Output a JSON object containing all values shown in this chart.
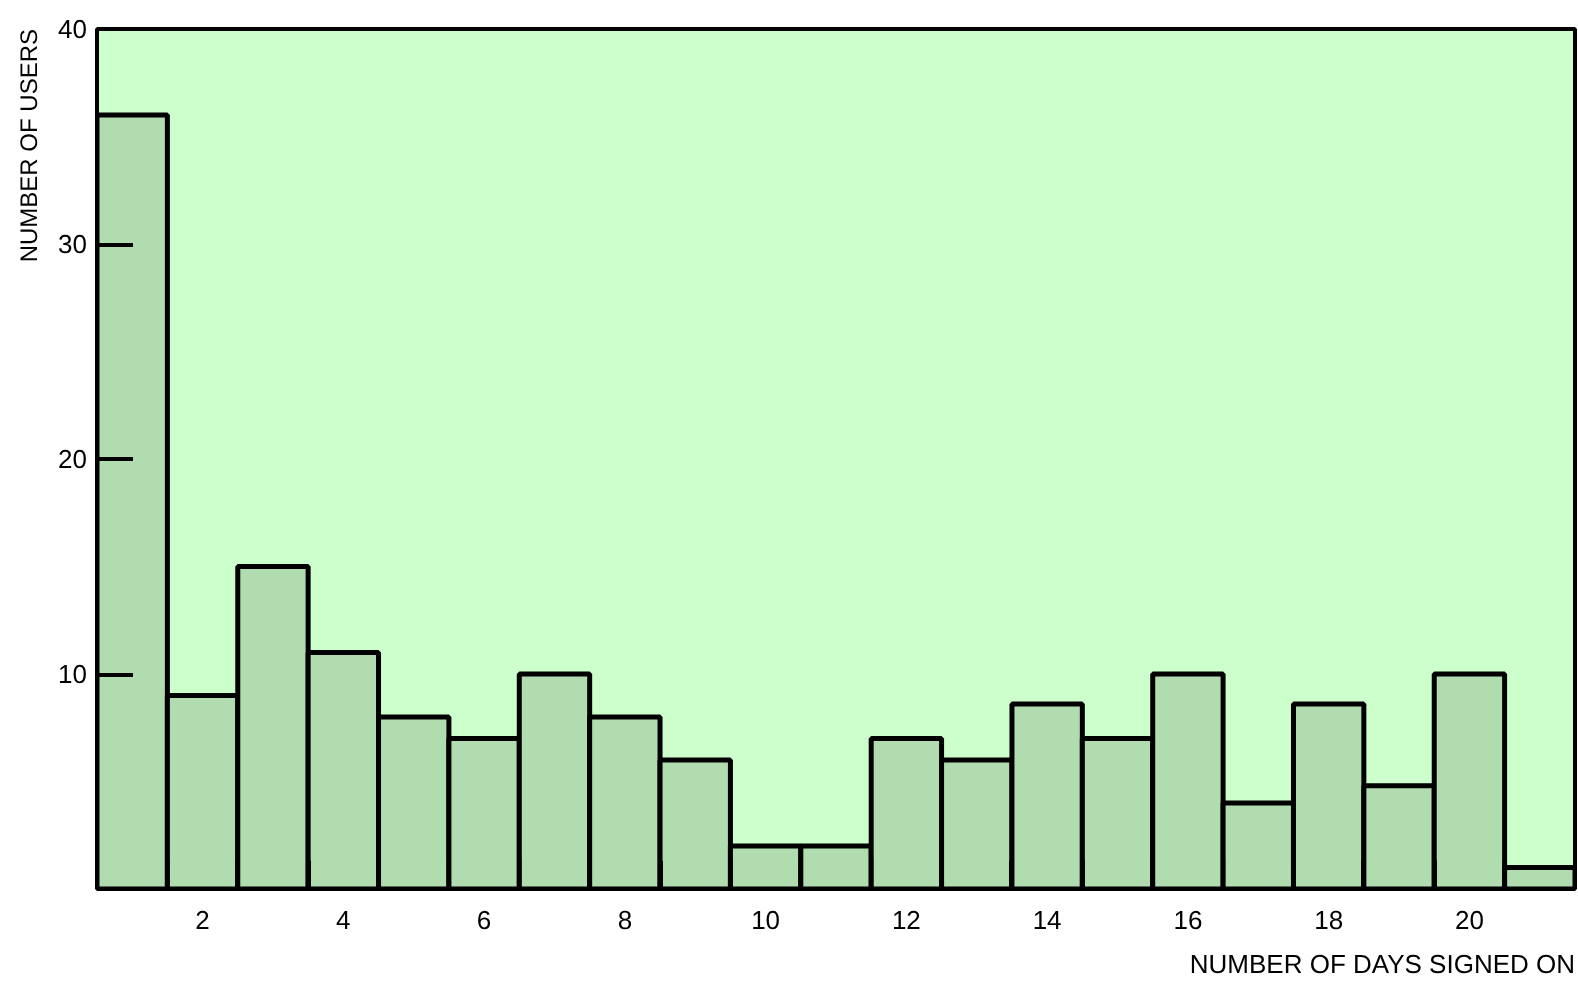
{
  "chart_data": {
    "type": "histogram",
    "xlabel": "NUMBER OF DAYS SIGNED ON",
    "ylabel": "NUMBER OF USERS",
    "bins": [
      0.5,
      1.5,
      2.5,
      3.5,
      4.5,
      5.5,
      6.5,
      7.5,
      8.5,
      9.5,
      10.5,
      11.5,
      12.5,
      13.5,
      14.5,
      15.5,
      16.5,
      17.5,
      18.5,
      19.5,
      20.5,
      21.5
    ],
    "values": [
      36,
      9,
      15,
      11,
      8,
      7,
      10,
      8,
      6,
      2,
      2,
      7,
      6,
      8.6,
      7,
      10,
      4,
      8.6,
      4.8,
      10,
      1
    ],
    "color": "#b0dcb0",
    "xlim": [
      0.5,
      21.5
    ],
    "ylim": [
      0,
      40
    ],
    "xticks": [
      2,
      4,
      6,
      8,
      10,
      12,
      14,
      16,
      18,
      20,
      {
        "value": 1.5,
        "label": null
      },
      {
        "value": 2.5,
        "label": null
      },
      {
        "value": 3.5,
        "label": null
      },
      {
        "value": 4.5,
        "label": null
      },
      {
        "value": 5.5,
        "label": null
      },
      {
        "value": 6.5,
        "label": null
      },
      {
        "value": 7.5,
        "label": null
      },
      {
        "value": 8.5,
        "label": null
      },
      {
        "value": 9.5,
        "label": null
      },
      {
        "value": 10.5,
        "label": null
      },
      {
        "value": 11.5,
        "label": null
      },
      {
        "value": 12.5,
        "label": null
      },
      {
        "value": 13.5,
        "label": null
      },
      {
        "value": 14.5,
        "label": null
      },
      {
        "value": 15.5,
        "label": null
      },
      {
        "value": 16.5,
        "label": null
      },
      {
        "value": 17.5,
        "label": null
      },
      {
        "value": 18.5,
        "label": null
      },
      {
        "value": 19.5,
        "label": null
      },
      {
        "value": 20.5,
        "label": null
      }
    ],
    "yticks": [
      10,
      20,
      30,
      40
    ],
    "grid": false
  }
}
